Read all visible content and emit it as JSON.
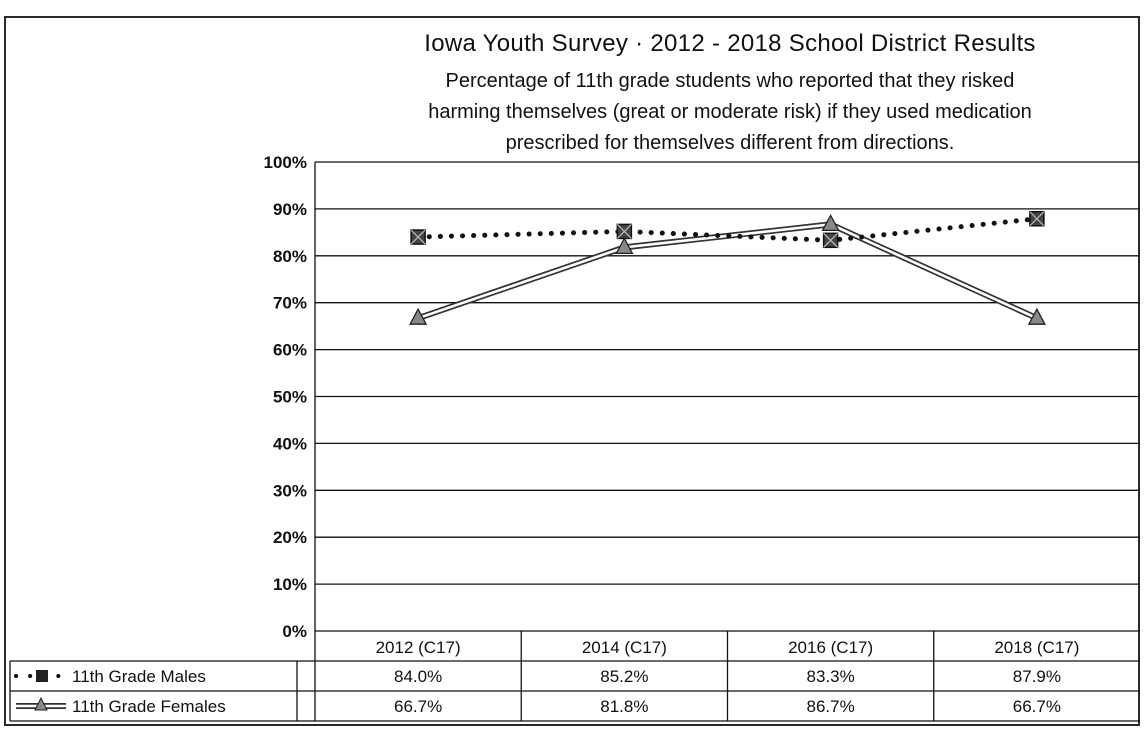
{
  "chart_data": {
    "type": "line",
    "title": "Iowa Youth Survey · 2012 - 2018 School District Results",
    "subtitle_lines": [
      "Percentage of 11th grade students who reported that they risked",
      "harming themselves (great or moderate risk) if they used medication",
      "prescribed for themselves different from directions."
    ],
    "categories": [
      "2012 (C17)",
      "2014 (C17)",
      "2016 (C17)",
      "2018 (C17)"
    ],
    "y_ticks": [
      "0%",
      "10%",
      "20%",
      "30%",
      "40%",
      "50%",
      "60%",
      "70%",
      "80%",
      "90%",
      "100%"
    ],
    "ylim": [
      0,
      100
    ],
    "grid": true,
    "legend": "data-table",
    "series": [
      {
        "name": "11th Grade Males",
        "values": [
          84.0,
          85.2,
          83.3,
          87.9
        ],
        "labels": [
          "84.0%",
          "85.2%",
          "83.3%",
          "87.9%"
        ],
        "style": "dotted",
        "color": "#111111"
      },
      {
        "name": "11th Grade Females",
        "values": [
          66.7,
          81.8,
          86.7,
          66.7
        ],
        "labels": [
          "66.7%",
          "81.8%",
          "86.7%",
          "66.7%"
        ],
        "style": "double",
        "color": "#333333"
      }
    ]
  }
}
